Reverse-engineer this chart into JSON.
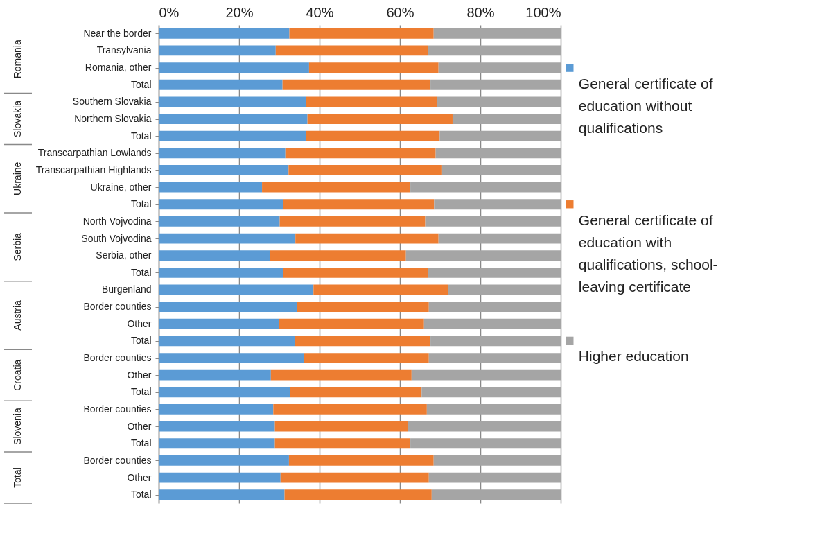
{
  "chart_data": {
    "type": "bar",
    "orientation": "horizontal",
    "stacked": true,
    "categories": [
      "Near the border",
      "Transylvania",
      "Romania, other",
      "Total",
      "Southern Slovakia",
      "Northern Slovakia",
      "Total",
      "Transcarpathian Lowlands",
      "Transcarpathian Highlands",
      "Ukraine, other",
      "Total",
      "North Vojvodina",
      "South Vojvodina",
      "Serbia, other",
      "Total",
      "Burgenland",
      "Border counties",
      "Other",
      "Total",
      "Border counties",
      "Other",
      "Total",
      "Border counties",
      "Other",
      "Total",
      "Border counties",
      "Other",
      "Total"
    ],
    "series": [
      {
        "name": "General certificate of education without qualifications",
        "color": "#5b9bd5",
        "values": [
          32.5,
          29.1,
          37.4,
          30.8,
          36.6,
          37.0,
          36.6,
          31.5,
          32.3,
          25.7,
          31.0,
          30.1,
          34.0,
          27.6,
          31.0,
          38.5,
          34.4,
          29.9,
          33.8,
          36.1,
          27.9,
          32.7,
          28.5,
          28.9,
          28.9,
          32.4,
          30.3,
          31.3
        ]
      },
      {
        "name": "General certificate of education with qualifications, school-leaving certificate",
        "color": "#ed7d31",
        "values": [
          35.9,
          37.8,
          32.2,
          36.8,
          32.7,
          36.1,
          33.3,
          37.4,
          38.2,
          36.9,
          37.5,
          36.2,
          35.6,
          33.9,
          36.0,
          33.4,
          32.8,
          36.1,
          33.8,
          31.1,
          35.0,
          32.7,
          38.2,
          33.1,
          33.7,
          36.0,
          36.9,
          36.6
        ]
      },
      {
        "name": "Higher education",
        "color": "#a5a5a5",
        "values": [
          31.6,
          33.1,
          30.4,
          32.4,
          30.7,
          26.9,
          30.1,
          31.1,
          29.5,
          37.4,
          31.5,
          33.7,
          30.4,
          38.5,
          33.0,
          28.1,
          32.8,
          34.0,
          32.4,
          32.8,
          37.1,
          34.6,
          33.3,
          38.0,
          37.4,
          31.6,
          32.8,
          32.1
        ]
      }
    ],
    "xlim": [
      0,
      100
    ],
    "xticks": [
      {
        "value": 0,
        "label": "0%"
      },
      {
        "value": 20,
        "label": "20%"
      },
      {
        "value": 40,
        "label": "40%"
      },
      {
        "value": 60,
        "label": "60%"
      },
      {
        "value": 80,
        "label": "80%"
      },
      {
        "value": 100,
        "label": "100%"
      }
    ],
    "grid": "x",
    "legend": "right",
    "annotations": [
      "Romania",
      "Slovakia",
      "Ukraine",
      "Serbia",
      "Austria",
      "Croatia",
      "Slovenia",
      "Total"
    ]
  }
}
